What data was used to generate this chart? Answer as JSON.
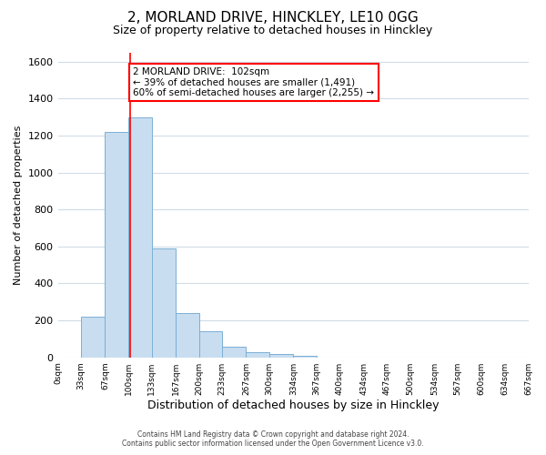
{
  "title": "2, MORLAND DRIVE, HINCKLEY, LE10 0GG",
  "subtitle": "Size of property relative to detached houses in Hinckley",
  "xlabel": "Distribution of detached houses by size in Hinckley",
  "ylabel": "Number of detached properties",
  "bin_edges": [
    0,
    33,
    67,
    100,
    133,
    167,
    200,
    233,
    267,
    300,
    334,
    367,
    400,
    434,
    467,
    500,
    534,
    567,
    600,
    634,
    667
  ],
  "bar_heights": [
    0,
    220,
    1220,
    1300,
    590,
    240,
    140,
    60,
    30,
    20,
    10,
    0,
    0,
    0,
    0,
    0,
    0,
    0,
    0,
    0
  ],
  "bar_color": "#c8ddf0",
  "bar_edge_color": "#7bafd4",
  "property_line_x": 102,
  "property_line_color": "red",
  "annotation_title": "2 MORLAND DRIVE:  102sqm",
  "annotation_line1": "← 39% of detached houses are smaller (1,491)",
  "annotation_line2": "60% of semi-detached houses are larger (2,255) →",
  "annotation_box_color": "white",
  "annotation_box_edge_color": "red",
  "ylim": [
    0,
    1650
  ],
  "xlim": [
    0,
    667
  ],
  "yticks": [
    0,
    200,
    400,
    600,
    800,
    1000,
    1200,
    1400,
    1600
  ],
  "tick_labels": [
    "0sqm",
    "33sqm",
    "67sqm",
    "100sqm",
    "133sqm",
    "167sqm",
    "200sqm",
    "233sqm",
    "267sqm",
    "300sqm",
    "334sqm",
    "367sqm",
    "400sqm",
    "434sqm",
    "467sqm",
    "500sqm",
    "534sqm",
    "567sqm",
    "600sqm",
    "634sqm",
    "667sqm"
  ],
  "tick_positions": [
    0,
    33,
    67,
    100,
    133,
    167,
    200,
    233,
    267,
    300,
    334,
    367,
    400,
    434,
    467,
    500,
    534,
    567,
    600,
    634,
    667
  ],
  "footer_line1": "Contains HM Land Registry data © Crown copyright and database right 2024.",
  "footer_line2": "Contains public sector information licensed under the Open Government Licence v3.0.",
  "grid_color": "#d0dce8",
  "background_color": "#ffffff",
  "title_fontsize": 11,
  "subtitle_fontsize": 9,
  "ylabel_fontsize": 8,
  "xlabel_fontsize": 9
}
